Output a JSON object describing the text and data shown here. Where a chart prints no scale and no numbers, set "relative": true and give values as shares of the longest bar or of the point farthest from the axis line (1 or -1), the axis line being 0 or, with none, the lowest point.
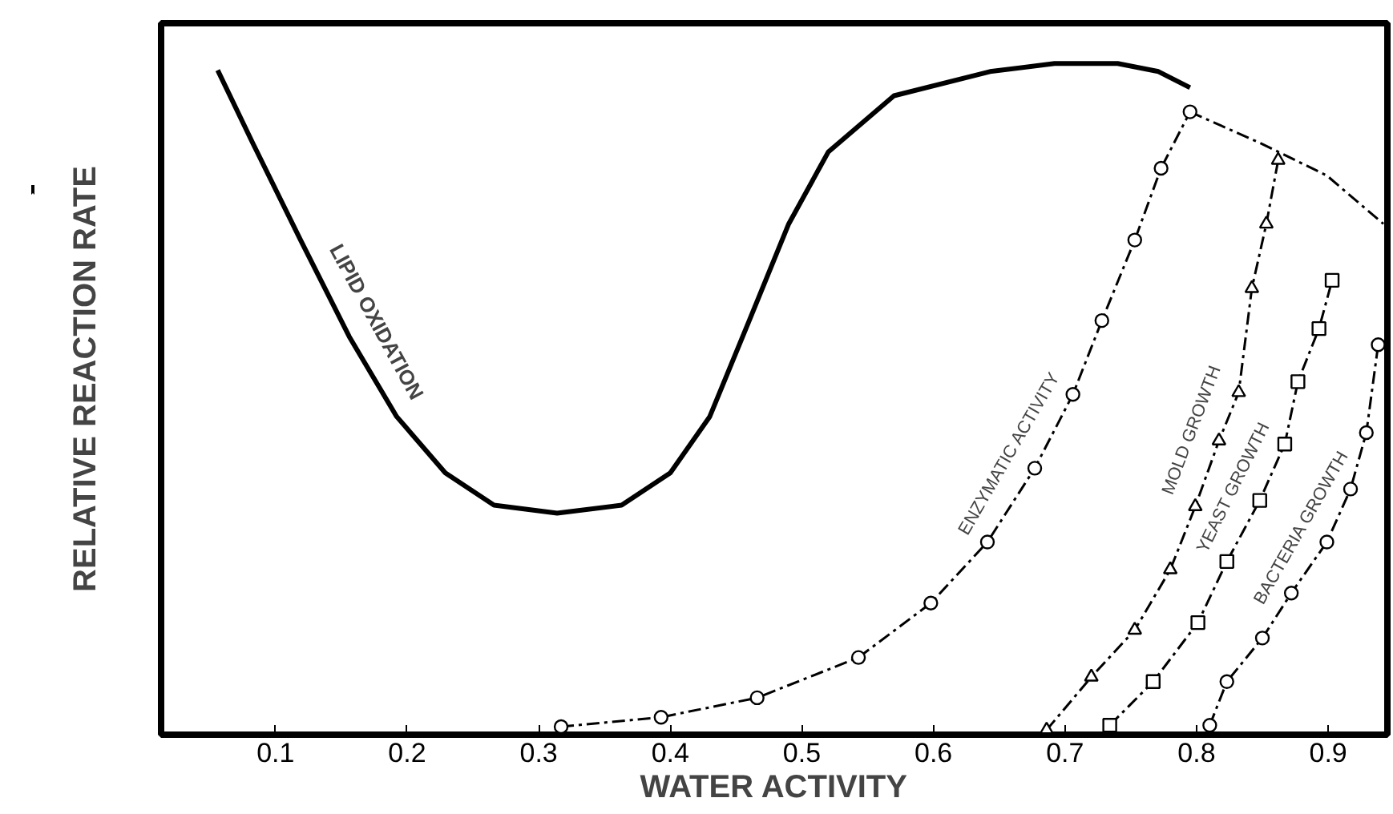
{
  "chart_data": {
    "type": "line",
    "relative": true,
    "xlabel": "WATER ACTIVITY",
    "ylabel": "RELATIVE REACTION RATE",
    "xlim": [
      0.013,
      0.945
    ],
    "xticks": [
      {
        "value": 0.1,
        "label": "0.1"
      },
      {
        "value": 0.2,
        "label": "0.2"
      },
      {
        "value": 0.3,
        "label": "0.3"
      },
      {
        "value": 0.4,
        "label": "0.4"
      },
      {
        "value": 0.5,
        "label": "0.5"
      },
      {
        "value": 0.6,
        "label": "0.6"
      },
      {
        "value": 0.7,
        "label": "0.7"
      },
      {
        "value": 0.8,
        "label": "0.8"
      },
      {
        "value": 0.9,
        "label": "0.9"
      }
    ],
    "grid": false,
    "series": [
      {
        "name": "LIPID OXIDATION",
        "color": "#000000",
        "marker": "none",
        "line_style": "solid",
        "x": [
          0.056,
          0.083,
          0.119,
          0.156,
          0.192,
          0.229,
          0.266,
          0.314,
          0.363,
          0.4,
          0.43,
          0.46,
          0.49,
          0.52,
          0.57,
          0.643,
          0.692,
          0.74,
          0.771,
          0.795
        ],
        "values": [
          0.99,
          0.88,
          0.737,
          0.593,
          0.474,
          0.39,
          0.342,
          0.33,
          0.342,
          0.39,
          0.474,
          0.617,
          0.761,
          0.868,
          0.952,
          0.988,
          1.0,
          1.0,
          0.988,
          0.964
        ]
      },
      {
        "color": "#000000",
        "marker": "none",
        "line_style": "dashed",
        "x": [
          0.795,
          0.85,
          0.899,
          0.942
        ],
        "values": [
          0.928,
          0.88,
          0.833,
          0.761
        ]
      },
      {
        "name": "ENZYMATIC ACTIVITY",
        "color": "#000000",
        "marker": "circle",
        "line_style": "dashed",
        "x": [
          0.317,
          0.393,
          0.466,
          0.543,
          0.598,
          0.641,
          0.677,
          0.706,
          0.728,
          0.753,
          0.773,
          0.795
        ],
        "values": [
          0.012,
          0.026,
          0.055,
          0.115,
          0.196,
          0.287,
          0.397,
          0.507,
          0.617,
          0.737,
          0.844,
          0.928
        ]
      },
      {
        "name": "MOLD GROWTH",
        "color": "#000000",
        "marker": "triangle",
        "line_style": "dashed",
        "x": [
          0.686,
          0.72,
          0.753,
          0.78,
          0.799,
          0.817,
          0.832,
          0.842,
          0.853,
          0.862
        ],
        "values": [
          0.007,
          0.086,
          0.156,
          0.246,
          0.34,
          0.438,
          0.51,
          0.665,
          0.761,
          0.856
        ]
      },
      {
        "name": "YEAST GROWTH",
        "color": "#000000",
        "marker": "square",
        "line_style": "dashed",
        "x": [
          0.734,
          0.767,
          0.801,
          0.823,
          0.848,
          0.867,
          0.877,
          0.893,
          0.903
        ],
        "values": [
          0.014,
          0.079,
          0.167,
          0.258,
          0.349,
          0.433,
          0.526,
          0.605,
          0.677
        ]
      },
      {
        "name": "BACTERIA GROWTH",
        "color": "#000000",
        "marker": "circle",
        "line_style": "dashed",
        "x": [
          0.81,
          0.823,
          0.85,
          0.872,
          0.899,
          0.917,
          0.929,
          0.938
        ],
        "values": [
          0.014,
          0.079,
          0.144,
          0.211,
          0.287,
          0.366,
          0.45,
          0.581
        ]
      }
    ]
  }
}
